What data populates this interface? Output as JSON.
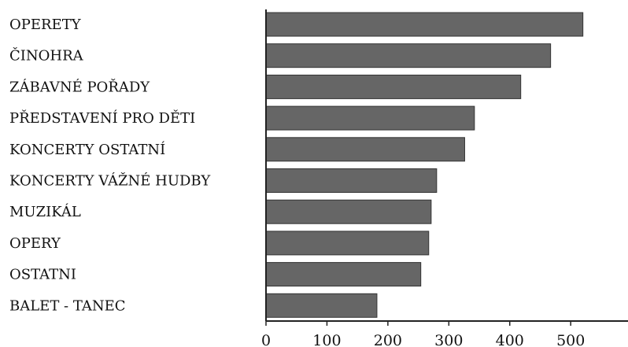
{
  "chart_data": {
    "type": "bar",
    "orientation": "horizontal",
    "title": "",
    "xlabel": "",
    "ylabel": "",
    "categories": [
      "OPERETY",
      "ČINOHRA",
      "ZÁBAVNÉ POŘADY",
      "PŘEDSTAVENÍ PRO DĚTI",
      "KONCERTY OSTATNÍ",
      "KONCERTY VÁŽNÉ HUDBY",
      "MUZIKÁL",
      "OPERY",
      "OSTATNI",
      "BALET - TANEC"
    ],
    "values": [
      520,
      467,
      418,
      342,
      326,
      280,
      271,
      267,
      254,
      182
    ],
    "xlim": [
      0,
      590
    ],
    "x_ticks": [
      0,
      100,
      200,
      300,
      400,
      500
    ],
    "x_tick_labels": [
      "0",
      "100",
      "200",
      "300",
      "400",
      "500"
    ],
    "grid": false,
    "legend": "none",
    "colors": {
      "bar_fill": "#666666",
      "bar_stroke": "#333333",
      "axis": "#222222",
      "text": "#111111"
    }
  }
}
